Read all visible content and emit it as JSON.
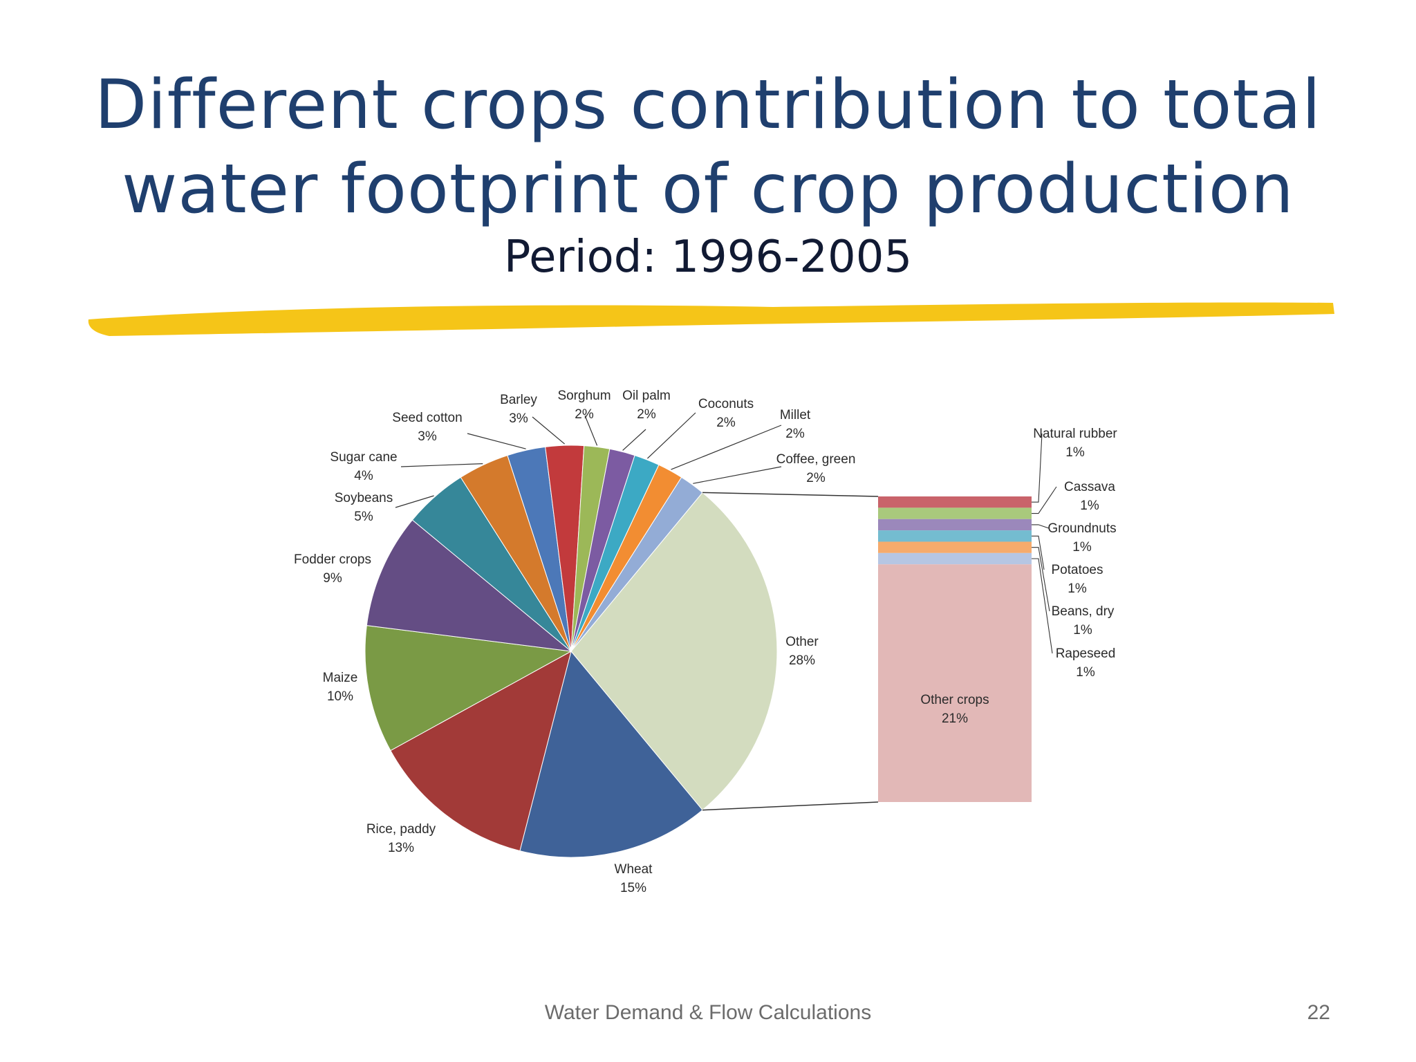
{
  "slide": {
    "title_line1": "Different crops contribution to total",
    "title_line2": "water footprint of crop production",
    "subtitle": "Period: 1996-2005",
    "footer": "Water Demand & Flow Calculations",
    "page_number": "22",
    "underline_color": "#f5c518",
    "title_color": "#1f3f6e"
  },
  "chart_data": [
    {
      "type": "pie",
      "series": [
        {
          "label": "Other",
          "value": 28,
          "text": "28%",
          "color": "#d3dcbf"
        },
        {
          "label": "Wheat",
          "value": 15,
          "text": "15%",
          "color": "#3f6298"
        },
        {
          "label": "Rice, paddy",
          "value": 13,
          "text": "13%",
          "color": "#a23a38"
        },
        {
          "label": "Maize",
          "value": 10,
          "text": "10%",
          "color": "#7a9a45"
        },
        {
          "label": "Fodder crops",
          "value": 9,
          "text": "9%",
          "color": "#644d84"
        },
        {
          "label": "Soybeans",
          "value": 5,
          "text": "5%",
          "color": "#368799"
        },
        {
          "label": "Sugar cane",
          "value": 4,
          "text": "4%",
          "color": "#d47a2c"
        },
        {
          "label": "Seed cotton",
          "value": 3,
          "text": "3%",
          "color": "#4c78b8"
        },
        {
          "label": "Barley",
          "value": 3,
          "text": "3%",
          "color": "#c23a3c"
        },
        {
          "label": "Sorghum",
          "value": 2,
          "text": "2%",
          "color": "#9cb858"
        },
        {
          "label": "Oil palm",
          "value": 2,
          "text": "2%",
          "color": "#7c5ba2"
        },
        {
          "label": "Coconuts",
          "value": 2,
          "text": "2%",
          "color": "#3ca9c4"
        },
        {
          "label": "Millet",
          "value": 2,
          "text": "2%",
          "color": "#f28d32"
        },
        {
          "label": "Coffee, green",
          "value": 2,
          "text": "2%",
          "color": "#93acd6"
        }
      ]
    },
    {
      "type": "bar",
      "stacked": true,
      "series": [
        {
          "label": "Natural rubber",
          "value": 1,
          "text": "1%",
          "color": "#c9636a"
        },
        {
          "label": "Cassava",
          "value": 1,
          "text": "1%",
          "color": "#a9c97c"
        },
        {
          "label": "Groundnuts",
          "value": 1,
          "text": "1%",
          "color": "#9b88bb"
        },
        {
          "label": "Potatoes",
          "value": 1,
          "text": "1%",
          "color": "#74bcd0"
        },
        {
          "label": "Beans, dry",
          "value": 1,
          "text": "1%",
          "color": "#f6ab6c"
        },
        {
          "label": "Rapeseed",
          "value": 1,
          "text": "1%",
          "color": "#b6c6e3"
        },
        {
          "label": "Other crops",
          "value": 21,
          "text": "21%",
          "color": "#e2b8b7"
        }
      ]
    }
  ]
}
